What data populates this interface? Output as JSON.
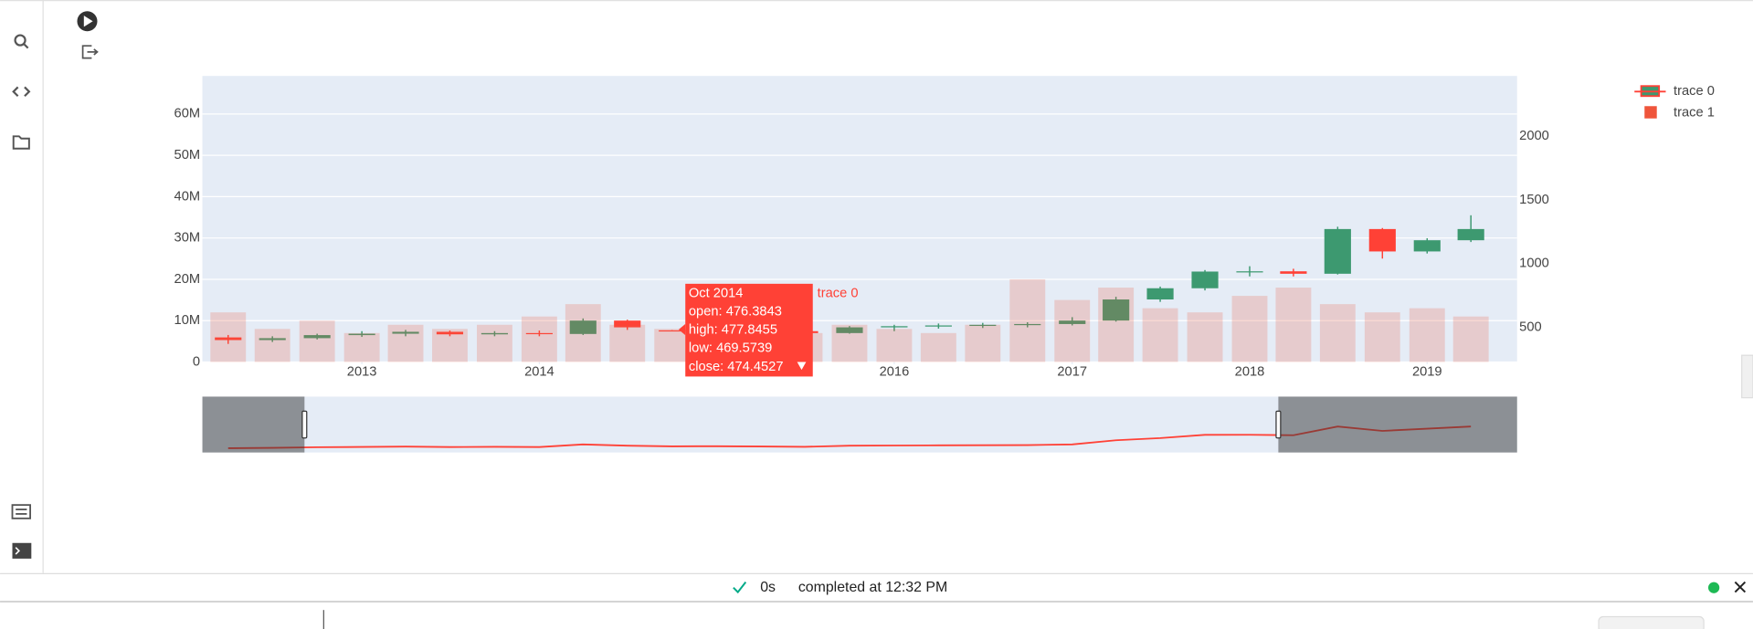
{
  "ui": {
    "status_time": "0s",
    "status_text": "completed at 12:32 PM"
  },
  "tooltip": {
    "title": "Oct 2014",
    "lines": [
      "open: 476.3843",
      "high: 477.8455",
      "low: 469.5739",
      "close: 474.4527"
    ],
    "trace": "trace 0"
  },
  "chart_data": {
    "type": "candlestick",
    "x": [
      "2012-04-01",
      "2012-07-01",
      "2012-10-01",
      "2013-01-01",
      "2013-04-01",
      "2013-07-01",
      "2013-10-01",
      "2014-01-01",
      "2014-04-01",
      "2014-07-01",
      "2014-10-01",
      "2015-01-01",
      "2015-04-01",
      "2015-07-01",
      "2015-10-01",
      "2016-01-01",
      "2016-04-01",
      "2016-07-01",
      "2016-10-01",
      "2017-01-01",
      "2017-04-01",
      "2017-07-01",
      "2017-10-01",
      "2018-01-01",
      "2018-04-01",
      "2018-07-01",
      "2018-10-01",
      "2019-01-01",
      "2019-04-01"
    ],
    "series": [
      {
        "name": "trace 0",
        "type": "candlestick",
        "axis": "y2",
        "increasing_color": "#3D9970",
        "decreasing_color": "#FF4136",
        "open": [
          421,
          400,
          415,
          439,
          450,
          465,
          445,
          455,
          448,
          553,
          476.3843,
          474,
          480,
          470,
          455,
          500,
          509,
          515,
          520,
          526,
          553,
          719,
          807,
          938,
          940,
          921,
          1272,
          1096,
          1184
        ],
        "high": [
          440,
          430,
          450,
          470,
          480,
          475,
          470,
          475,
          570,
          560,
          477.8455,
          500,
          495,
          480,
          510,
          520,
          530,
          535,
          540,
          580,
          740,
          820,
          950,
          980,
          960,
          1290,
          1280,
          1200,
          1380
        ],
        "low": [
          370,
          385,
          405,
          425,
          430,
          430,
          430,
          430,
          440,
          480,
          469.5739,
          455,
          450,
          430,
          450,
          470,
          490,
          495,
          500,
          515,
          545,
          700,
          790,
          900,
          900,
          915,
          1040,
          1080,
          1170
        ],
        "close": [
          400,
          415,
          439,
          450,
          465,
          445,
          455,
          448,
          553,
          500,
          474.4527,
          480,
          470,
          455,
          500,
          509,
          515,
          520,
          526,
          553,
          719,
          807,
          938,
          940,
          921,
          1272,
          1096,
          1184,
          1272
        ]
      },
      {
        "name": "trace 1",
        "type": "bar",
        "color": "#EF553B",
        "values": [
          12000000,
          8000000,
          10000000,
          7000000,
          9000000,
          8000000,
          9000000,
          11000000,
          14000000,
          9000000,
          8000000,
          10000000,
          9000000,
          7000000,
          9000000,
          8000000,
          7000000,
          9000000,
          20000000,
          15000000,
          18000000,
          13000000,
          12000000,
          16000000,
          18000000,
          14000000,
          12000000,
          13000000,
          11000000
        ]
      }
    ],
    "xlim": [
      "2012-02-08",
      "2019-07-05"
    ],
    "xticks": [
      {
        "value": "2013-01-01",
        "label": "2013"
      },
      {
        "value": "2014-01-01",
        "label": "2014"
      },
      {
        "value": "2016-01-01",
        "label": "2016"
      },
      {
        "value": "2017-01-01",
        "label": "2017"
      },
      {
        "value": "2018-01-01",
        "label": "2018"
      },
      {
        "value": "2019-01-01",
        "label": "2019"
      }
    ],
    "ylim": [
      0,
      69200000
    ],
    "yticks": [
      0,
      {
        "value": 10000000,
        "label": "10M"
      },
      {
        "value": 20000000,
        "label": "20M"
      },
      {
        "value": 30000000,
        "label": "30M"
      },
      {
        "value": 40000000,
        "label": "40M"
      },
      {
        "value": 50000000,
        "label": "50M"
      },
      {
        "value": 60000000,
        "label": "60M"
      }
    ],
    "y2lim": [
      228,
      2474
    ],
    "y2ticks": [
      500,
      1000,
      1500,
      2000
    ],
    "grid": true,
    "legend": "top-right",
    "rangeslider": {
      "range": [
        "2012-09-05",
        "2018-03-01"
      ]
    }
  }
}
